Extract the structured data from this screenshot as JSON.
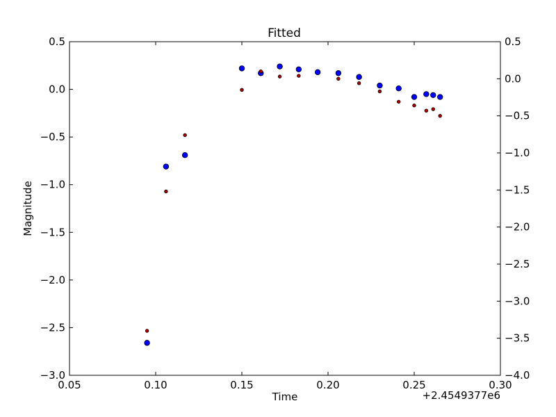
{
  "chart_data": {
    "type": "scatter",
    "title": "Fitted",
    "xlabel": "Time",
    "ylabel": "Magnitude",
    "x_offset_label": "+2.4549377e6",
    "xlim": [
      0.05,
      0.3
    ],
    "ylim_left": [
      -3.0,
      0.5
    ],
    "ylim_right": [
      -4.0,
      0.5
    ],
    "x_ticks": [
      "0.05",
      "0.10",
      "0.15",
      "0.20",
      "0.25",
      "0.30"
    ],
    "y_ticks_left": [
      "0.5",
      "0.0",
      "−0.5",
      "−1.0",
      "−1.5",
      "−2.0",
      "−2.5",
      "−3.0"
    ],
    "y_ticks_right": [
      "0.5",
      "0.0",
      "−0.5",
      "−1.0",
      "−1.5",
      "−2.0",
      "−2.5",
      "−3.0",
      "−3.5",
      "−4.0"
    ],
    "grid": false,
    "series": [
      {
        "axis": "left",
        "color": "#0000ff",
        "marker": "large-circle",
        "x": [
          0.095,
          0.106,
          0.117,
          0.15,
          0.161,
          0.172,
          0.183,
          0.194,
          0.206,
          0.218,
          0.23,
          0.241,
          0.25,
          0.257,
          0.261,
          0.265
        ],
        "y": [
          -2.66,
          -0.81,
          -0.69,
          0.22,
          0.17,
          0.24,
          0.21,
          0.18,
          0.17,
          0.13,
          0.04,
          0.01,
          -0.08,
          -0.05,
          -0.06,
          -0.08
        ]
      },
      {
        "axis": "right",
        "color": "#b00000",
        "marker": "small-circle",
        "x": [
          0.095,
          0.106,
          0.117,
          0.15,
          0.161,
          0.172,
          0.183,
          0.206,
          0.218,
          0.23,
          0.241,
          0.25,
          0.257,
          0.261,
          0.265
        ],
        "y": [
          -3.4,
          -1.52,
          -0.76,
          -0.15,
          0.1,
          0.03,
          0.04,
          0.0,
          -0.06,
          -0.17,
          -0.31,
          -0.36,
          -0.43,
          -0.41,
          -0.5
        ]
      }
    ]
  }
}
